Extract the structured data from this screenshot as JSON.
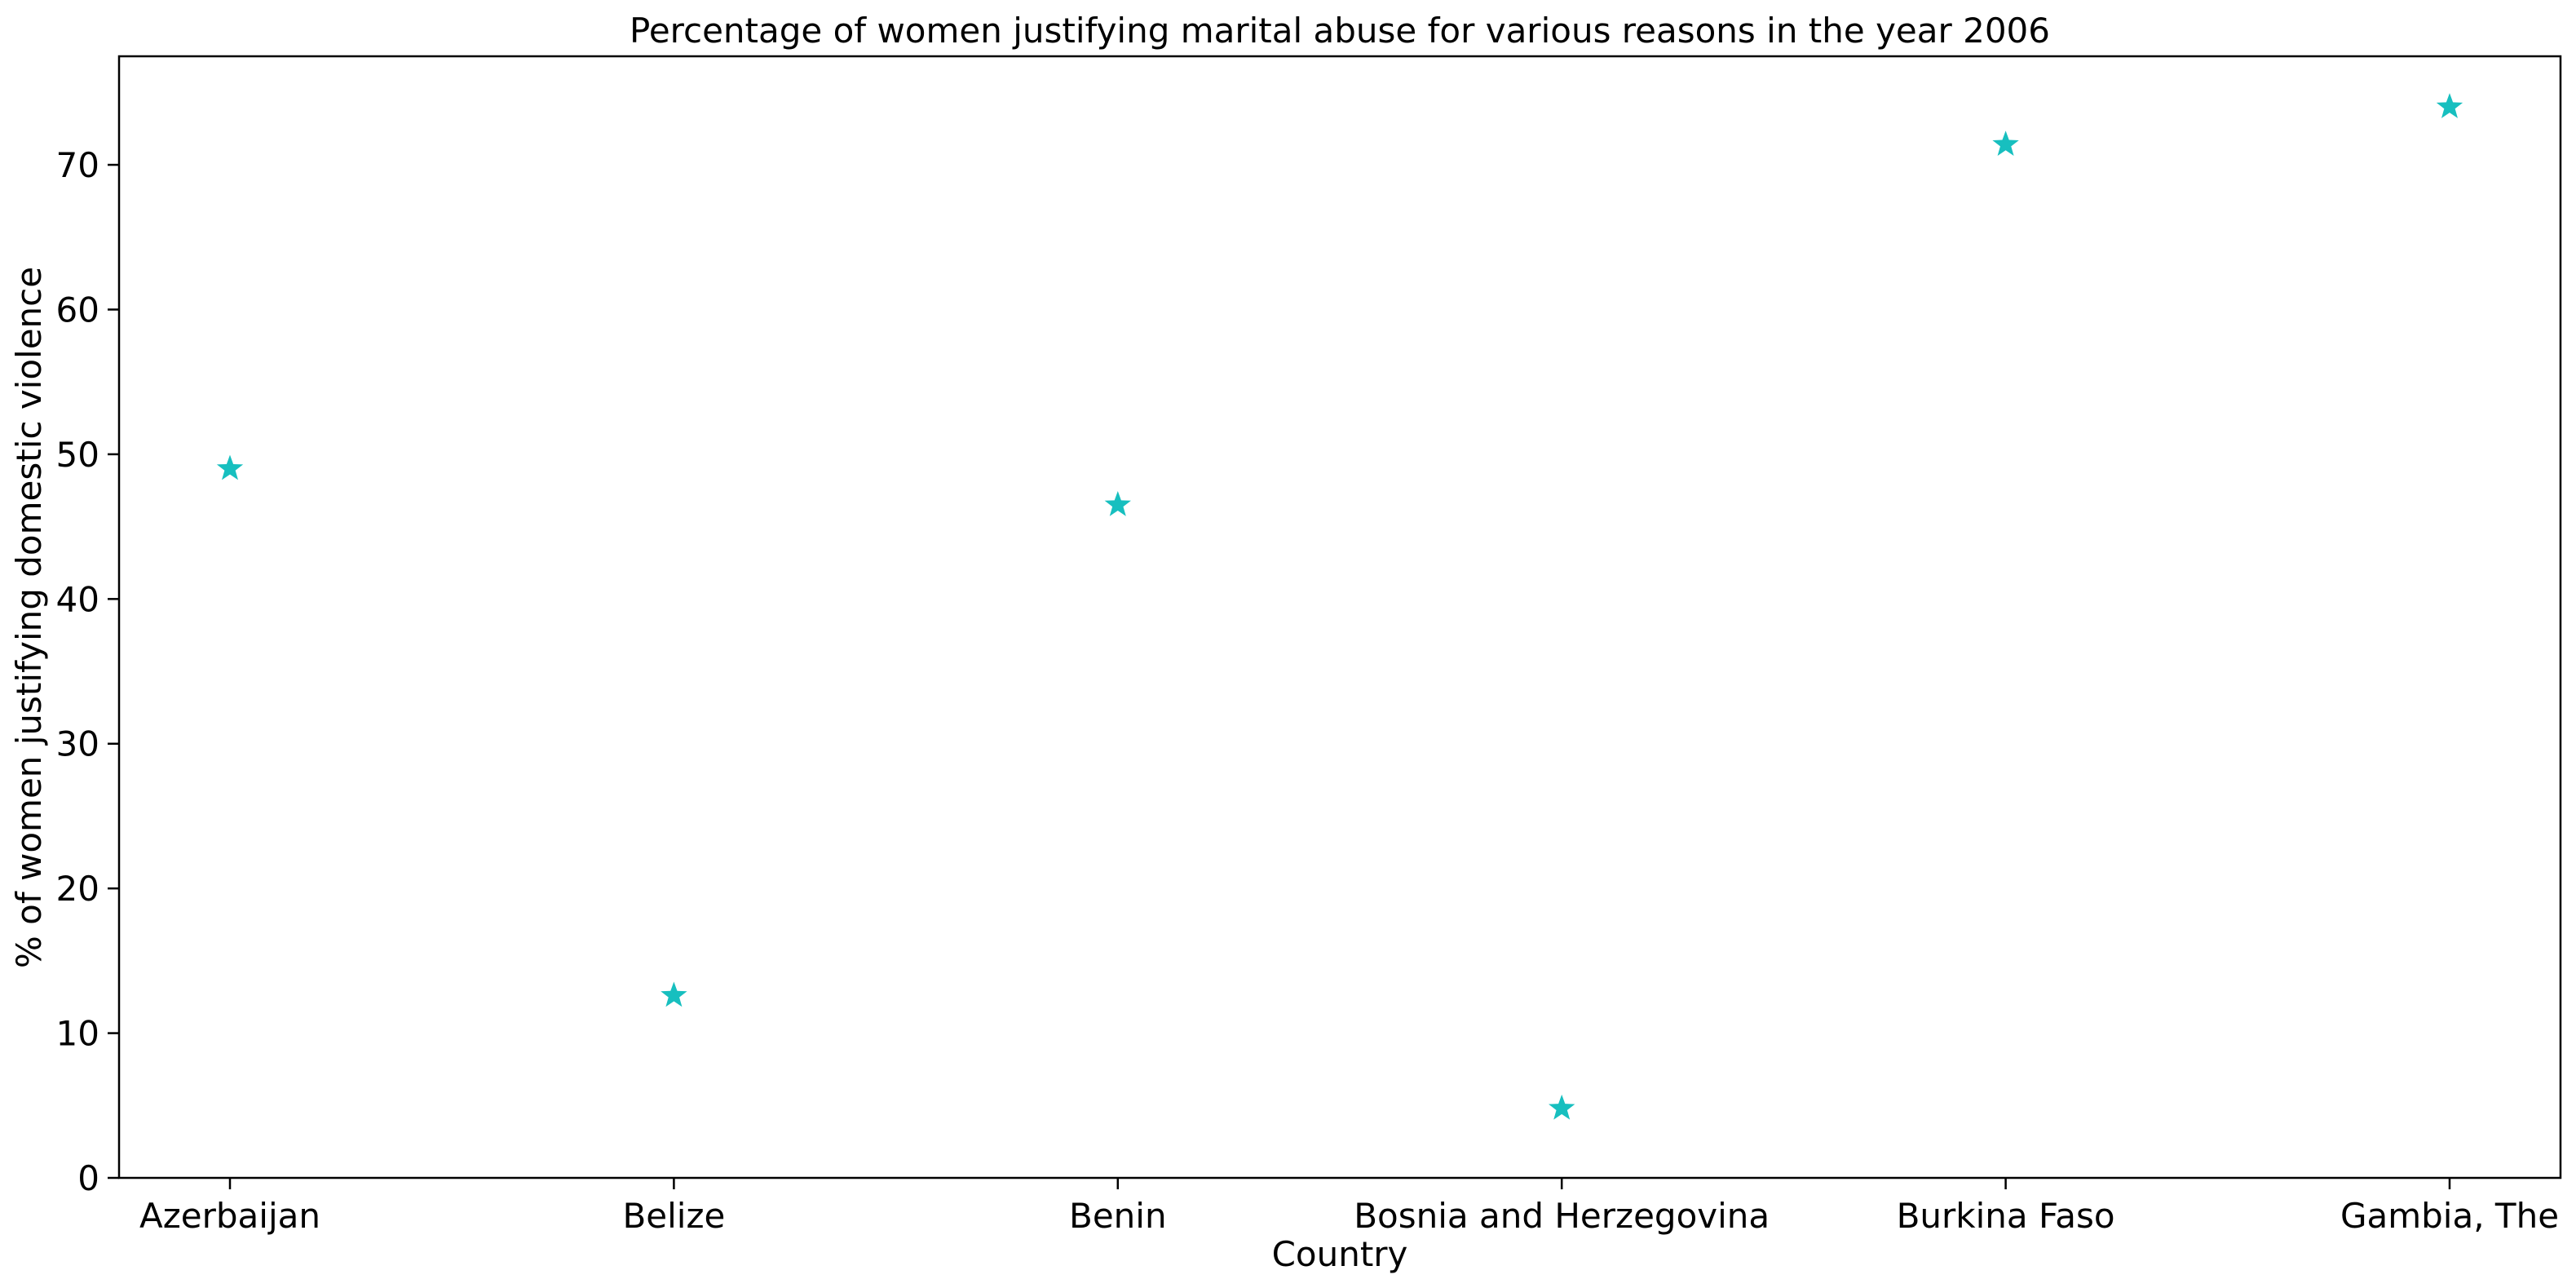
{
  "chart_data": {
    "type": "scatter",
    "title": "Percentage of women justifying marital abuse for various reasons in the year 2006",
    "xlabel": "Country",
    "ylabel": "% of women justifying domestic violence",
    "categories": [
      "Azerbaijan",
      "Belize",
      "Benin",
      "Bosnia and Herzegovina",
      "Burkina Faso",
      "Gambia, The"
    ],
    "values": [
      49.0,
      12.6,
      46.5,
      4.8,
      71.4,
      74.0
    ],
    "ylim": [
      0,
      77.5
    ],
    "yticks": [
      0,
      10,
      20,
      30,
      40,
      50,
      60,
      70
    ],
    "marker": "star",
    "color": "#17bfbf",
    "grid": false
  }
}
